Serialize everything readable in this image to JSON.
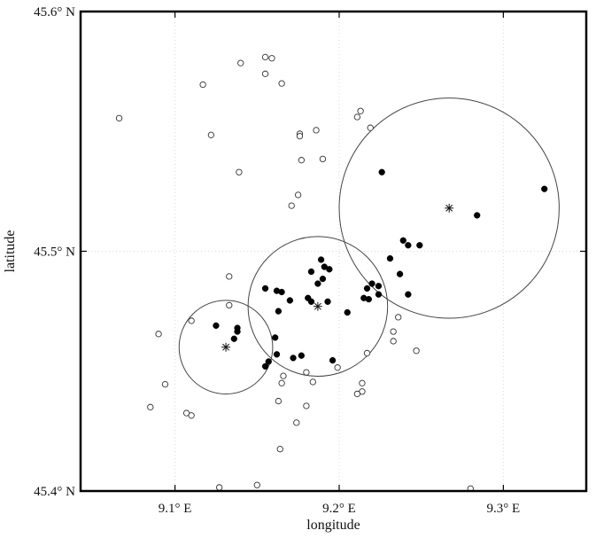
{
  "chart_data": {
    "type": "scatter",
    "xlabel": "longitude",
    "ylabel": "latitude",
    "xlim": [
      9.0425,
      9.3505
    ],
    "ylim": [
      45.4,
      45.6
    ],
    "x_ticks": [
      {
        "value": 9.1,
        "label": "9.1° E"
      },
      {
        "value": 9.2,
        "label": "9.2° E"
      },
      {
        "value": 9.3,
        "label": "9.3° E"
      }
    ],
    "y_ticks": [
      {
        "value": 45.4,
        "label": "45.4° N"
      },
      {
        "value": 45.5,
        "label": "45.5° N"
      },
      {
        "value": 45.6,
        "label": "45.6° N"
      }
    ],
    "grid": true,
    "series": [
      {
        "marker": "hollow-circle",
        "points": [
          [
            9.155,
            45.581
          ],
          [
            9.159,
            45.5805
          ],
          [
            9.14,
            45.5785
          ],
          [
            9.155,
            45.574
          ],
          [
            9.165,
            45.57
          ],
          [
            9.117,
            45.5695
          ],
          [
            9.066,
            45.5555
          ],
          [
            9.213,
            45.5585
          ],
          [
            9.211,
            45.556
          ],
          [
            9.219,
            45.5515
          ],
          [
            9.122,
            45.5485
          ],
          [
            9.186,
            45.5505
          ],
          [
            9.176,
            45.549
          ],
          [
            9.176,
            45.548
          ],
          [
            9.19,
            45.5385
          ],
          [
            9.177,
            45.538
          ],
          [
            9.139,
            45.533
          ],
          [
            9.175,
            45.5235
          ],
          [
            9.171,
            45.519
          ],
          [
            9.133,
            45.4895
          ],
          [
            9.133,
            45.4775
          ],
          [
            9.11,
            45.471
          ],
          [
            9.09,
            45.4655
          ],
          [
            9.236,
            45.4725
          ],
          [
            9.233,
            45.4665
          ],
          [
            9.233,
            45.4625
          ],
          [
            9.247,
            45.4585
          ],
          [
            9.217,
            45.4575
          ],
          [
            9.199,
            45.4515
          ],
          [
            9.18,
            45.4495
          ],
          [
            9.166,
            45.448
          ],
          [
            9.165,
            45.445
          ],
          [
            9.184,
            45.4455
          ],
          [
            9.214,
            45.445
          ],
          [
            9.094,
            45.4445
          ],
          [
            9.214,
            45.4415
          ],
          [
            9.211,
            45.4405
          ],
          [
            9.163,
            45.4375
          ],
          [
            9.18,
            45.4355
          ],
          [
            9.085,
            45.435
          ],
          [
            9.107,
            45.4325
          ],
          [
            9.11,
            45.4315
          ],
          [
            9.174,
            45.4285
          ],
          [
            9.164,
            45.4175
          ],
          [
            9.127,
            45.4015
          ],
          [
            9.15,
            45.4025
          ],
          [
            9.28,
            45.401
          ]
        ]
      },
      {
        "marker": "filled-circle",
        "points": [
          [
            9.226,
            45.533
          ],
          [
            9.325,
            45.526
          ],
          [
            9.284,
            45.515
          ],
          [
            9.239,
            45.5045
          ],
          [
            9.242,
            45.5025
          ],
          [
            9.249,
            45.5025
          ],
          [
            9.231,
            45.497
          ],
          [
            9.189,
            45.4965
          ],
          [
            9.191,
            45.4935
          ],
          [
            9.194,
            45.4925
          ],
          [
            9.183,
            45.4915
          ],
          [
            9.237,
            45.4905
          ],
          [
            9.19,
            45.4885
          ],
          [
            9.187,
            45.4865
          ],
          [
            9.22,
            45.4865
          ],
          [
            9.224,
            45.4855
          ],
          [
            9.217,
            45.4845
          ],
          [
            9.155,
            45.4845
          ],
          [
            9.162,
            45.4835
          ],
          [
            9.165,
            45.483
          ],
          [
            9.224,
            45.482
          ],
          [
            9.242,
            45.482
          ],
          [
            9.215,
            45.4805
          ],
          [
            9.218,
            45.48
          ],
          [
            9.181,
            45.4805
          ],
          [
            9.17,
            45.4795
          ],
          [
            9.183,
            45.479
          ],
          [
            9.193,
            45.479
          ],
          [
            9.163,
            45.475
          ],
          [
            9.205,
            45.4745
          ],
          [
            9.125,
            45.469
          ],
          [
            9.138,
            45.468
          ],
          [
            9.138,
            45.4665
          ],
          [
            9.136,
            45.4635
          ],
          [
            9.161,
            45.464
          ],
          [
            9.162,
            45.457
          ],
          [
            9.177,
            45.4565
          ],
          [
            9.172,
            45.4555
          ],
          [
            9.196,
            45.4545
          ],
          [
            9.157,
            45.454
          ],
          [
            9.155,
            45.452
          ]
        ]
      },
      {
        "marker": "star",
        "points": [
          [
            9.267,
            45.518
          ],
          [
            9.187,
            45.477
          ],
          [
            9.131,
            45.46
          ]
        ]
      }
    ],
    "circles": [
      {
        "cx": 9.267,
        "cy": 45.518,
        "r": 0.067
      },
      {
        "cx": 9.187,
        "cy": 45.477,
        "r": 0.0425
      },
      {
        "cx": 9.131,
        "cy": 45.46,
        "r": 0.0285
      }
    ]
  }
}
